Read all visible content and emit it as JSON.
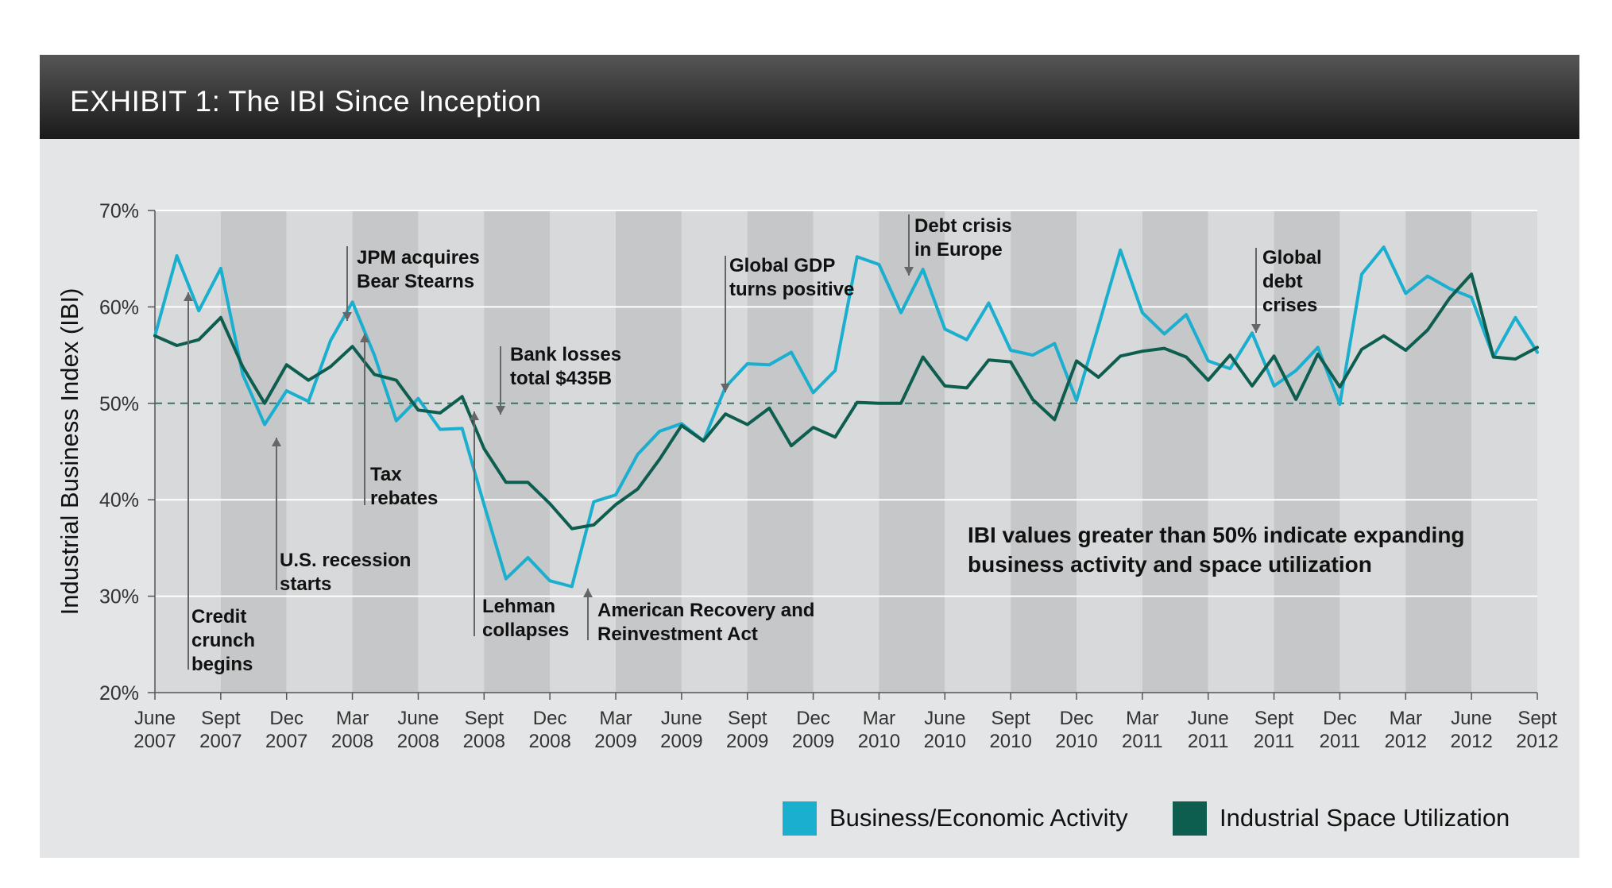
{
  "header": {
    "title": "EXHIBIT 1: The IBI Since Inception"
  },
  "note": {
    "text": "IBI values greater than 50% indicate expanding\nbusiness activity and space utilization"
  },
  "legend": [
    {
      "label": "Business/Economic Activity",
      "color": "#1aaecf"
    },
    {
      "label": "Industrial Space Utilization",
      "color": "#0d5e4f"
    }
  ],
  "chart_data": {
    "type": "line",
    "title": "EXHIBIT 1: The IBI Since Inception",
    "ylabel": "Industrial Business Index (IBI)",
    "xlabel": "",
    "ylim": [
      20,
      70
    ],
    "y_ticks": [
      "70%",
      "60%",
      "50%",
      "40%",
      "30%",
      "20%"
    ],
    "reference_line": 50,
    "x_tick_labels": [
      [
        "June",
        "2007"
      ],
      [
        "Sept",
        "2007"
      ],
      [
        "Dec",
        "2007"
      ],
      [
        "Mar",
        "2008"
      ],
      [
        "June",
        "2008"
      ],
      [
        "Sept",
        "2008"
      ],
      [
        "Dec",
        "2008"
      ],
      [
        "Mar",
        "2009"
      ],
      [
        "June",
        "2009"
      ],
      [
        "Sept",
        "2009"
      ],
      [
        "Dec",
        "2009"
      ],
      [
        "Mar",
        "2010"
      ],
      [
        "June",
        "2010"
      ],
      [
        "Sept",
        "2010"
      ],
      [
        "Dec",
        "2010"
      ],
      [
        "Mar",
        "2011"
      ],
      [
        "June",
        "2011"
      ],
      [
        "Sept",
        "2011"
      ],
      [
        "Dec",
        "2011"
      ],
      [
        "Mar",
        "2012"
      ],
      [
        "June",
        "2012"
      ],
      [
        "Sept",
        "2012"
      ]
    ],
    "x": [
      "Jun 2007",
      "Jul 2007",
      "Aug 2007",
      "Sep 2007",
      "Oct 2007",
      "Nov 2007",
      "Dec 2007",
      "Jan 2008",
      "Feb 2008",
      "Mar 2008",
      "Apr 2008",
      "May 2008",
      "Jun 2008",
      "Jul 2008",
      "Aug 2008",
      "Sep 2008",
      "Oct 2008",
      "Nov 2008",
      "Dec 2008",
      "Jan 2009",
      "Feb 2009",
      "Mar 2009",
      "Apr 2009",
      "May 2009",
      "Jun 2009",
      "Jul 2009",
      "Aug 2009",
      "Sep 2009",
      "Oct 2009",
      "Nov 2009",
      "Dec 2009",
      "Jan 2010",
      "Feb 2010",
      "Mar 2010",
      "Apr 2010",
      "May 2010",
      "Jun 2010",
      "Jul 2010",
      "Aug 2010",
      "Sep 2010",
      "Oct 2010",
      "Nov 2010",
      "Dec 2010",
      "Jan 2011",
      "Feb 2011",
      "Mar 2011",
      "Apr 2011",
      "May 2011",
      "Jun 2011",
      "Jul 2011",
      "Aug 2011",
      "Sep 2011",
      "Oct 2011",
      "Nov 2011",
      "Dec 2011",
      "Jan 2012",
      "Feb 2012",
      "Mar 2012",
      "Apr 2012",
      "May 2012",
      "Jun 2012",
      "Jul 2012",
      "Aug 2012",
      "Sep 2012"
    ],
    "series": [
      {
        "name": "Business/Economic Activity",
        "color": "#1aaecf",
        "values": [
          57,
          65.3,
          59.6,
          64,
          53,
          47.8,
          51.3,
          50.2,
          56.5,
          60.5,
          55,
          48.2,
          50.5,
          47.3,
          47.4,
          39.5,
          31.8,
          34,
          31.6,
          31,
          39.8,
          40.5,
          44.7,
          47.1,
          47.9,
          46.1,
          51.7,
          54.1,
          54,
          55.3,
          51.1,
          53.4,
          65.2,
          64.4,
          59.4,
          63.9,
          57.7,
          56.6,
          60.4,
          55.5,
          55,
          56.2,
          50.3,
          58,
          65.9,
          59.4,
          57.2,
          59.2,
          54.4,
          53.6,
          57.3,
          51.8,
          53.4,
          55.8,
          49.9,
          63.4,
          66.2,
          61.4,
          63.2,
          61.9,
          61,
          54.8,
          58.9,
          55.3
        ]
      },
      {
        "name": "Industrial Space Utilization",
        "color": "#0d5e4f",
        "values": [
          57,
          56,
          56.6,
          58.9,
          53.8,
          50,
          54,
          52.4,
          53.8,
          55.9,
          53,
          52.4,
          49.3,
          49,
          50.7,
          45.3,
          41.8,
          41.8,
          39.6,
          37,
          37.4,
          39.5,
          41.1,
          44.2,
          47.7,
          46.1,
          48.9,
          47.8,
          49.5,
          45.6,
          47.5,
          46.5,
          50.1,
          50,
          50,
          54.8,
          51.8,
          51.6,
          54.5,
          54.3,
          50.4,
          48.3,
          54.4,
          52.7,
          54.9,
          55.4,
          55.7,
          54.8,
          52.4,
          55,
          51.8,
          54.9,
          50.4,
          55.1,
          51.7,
          55.6,
          57,
          55.5,
          57.6,
          60.9,
          63.4,
          54.8,
          54.6,
          55.8
        ]
      }
    ],
    "annotations": [
      {
        "id": "credit-crunch",
        "text": "Credit\ncrunch\nbegins",
        "x_index": 1,
        "arrow": "up"
      },
      {
        "id": "us-recession",
        "text": "U.S. recession\nstarts",
        "x_index": 5,
        "arrow": "up"
      },
      {
        "id": "jpm-bear",
        "text": "JPM acquires\nBear Stearns",
        "x_index": 9,
        "arrow": "down"
      },
      {
        "id": "tax-rebates",
        "text": "Tax\nrebates",
        "x_index": 10,
        "arrow": "up"
      },
      {
        "id": "lehman",
        "text": "Lehman\ncollapses",
        "x_index": 15,
        "arrow": "up"
      },
      {
        "id": "bank-losses",
        "text": "Bank losses\ntotal $435B",
        "x_index": 16,
        "arrow": "down"
      },
      {
        "id": "arra",
        "text": "American Recovery and\nReinvestment Act",
        "x_index": 20,
        "arrow": "up"
      },
      {
        "id": "global-gdp",
        "text": "Global GDP\nturns positive",
        "x_index": 26,
        "arrow": "down"
      },
      {
        "id": "debt-europe",
        "text": "Debt crisis\nin Europe",
        "x_index": 34,
        "arrow": "down"
      },
      {
        "id": "global-debt",
        "text": "Global\ndebt\ncrises",
        "x_index": 50,
        "arrow": "down"
      }
    ]
  }
}
